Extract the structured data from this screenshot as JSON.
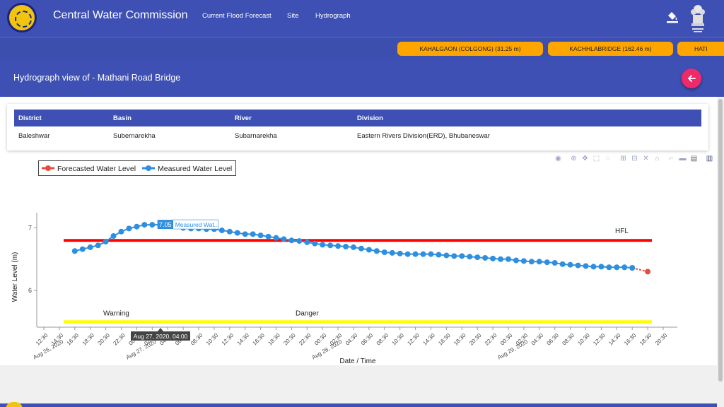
{
  "app": {
    "title": "Central Water Commission",
    "nav": [
      "Current Flood Forecast",
      "Site",
      "Hydrograph"
    ]
  },
  "ticker": [
    "KAHALGAON (COLGONG) (31.25 m)",
    "KACHHLABRIDGE (162.46 m)",
    "HATI"
  ],
  "page": {
    "title": "Hydrograph view of - Mathani Road Bridge"
  },
  "site_table": {
    "headers": [
      "District",
      "Basin",
      "River",
      "Division"
    ],
    "values": [
      "Baleshwar",
      "Subernarekha",
      "Subarnarekha",
      "Eastern Rivers Division(ERD), Bhubaneswar"
    ]
  },
  "toolbar_icons": [
    "camera-icon",
    "zoom-icon",
    "pan-icon",
    "box-select-icon",
    "lasso-select-icon",
    "zoom-in-icon",
    "zoom-out-icon",
    "autoscale-icon",
    "home-icon",
    "spike-lines-icon",
    "hover-closest-icon",
    "hover-compare-icon",
    "plotly-logo-icon"
  ],
  "colors": {
    "header": "#3e50b4",
    "ticker_pill": "#ffa500",
    "forecast": "#e74c3c",
    "measured": "#2e8fe0",
    "hfl_line": "#ff0000",
    "warning_line": "#ffff00",
    "fab": "#ee2a6b"
  },
  "chart_data": {
    "type": "line",
    "xlabel": "Date / Time",
    "ylabel": "Water Level (m)",
    "ylim": [
      5.42,
      7.2
    ],
    "yticks": [
      6,
      7
    ],
    "xticks": [
      "12:30",
      "14:30",
      "16:30",
      "18:30",
      "20:30",
      "22:30",
      "00:30",
      "02:30",
      "04:30",
      "06:30",
      "08:30",
      "10:30",
      "12:30",
      "14:30",
      "16:30",
      "18:30",
      "20:30",
      "22:30",
      "00:30",
      "02:30",
      "04:30",
      "06:30",
      "08:30",
      "10:30",
      "12:30",
      "14:30",
      "16:30",
      "18:30",
      "20:30",
      "22:30",
      "00:30",
      "02:30",
      "04:30",
      "06:30",
      "08:30",
      "10:30",
      "12:30",
      "14:30",
      "16:30",
      "18:30",
      "20:30"
    ],
    "xtick_dates": [
      {
        "tick": 0,
        "text": "Aug 26, 2020"
      },
      {
        "tick": 6,
        "text": "Aug 27, 2020"
      },
      {
        "tick": 18,
        "text": "Aug 28, 2020"
      },
      {
        "tick": 30,
        "text": "Aug 29, 2020"
      }
    ],
    "legend_position": "top-left",
    "series": [
      {
        "name": "Forecasted Water Level",
        "x": [
          38,
          39
        ],
        "values": [
          6.36,
          6.3
        ]
      },
      {
        "name": "Measured Water Level",
        "x": [
          2,
          2.5,
          3,
          3.5,
          4,
          4.5,
          5,
          5.5,
          6,
          6.5,
          7,
          7.5,
          8,
          8.5,
          9,
          9.5,
          10,
          10.5,
          11,
          11.5,
          12,
          12.5,
          13,
          13.5,
          14,
          14.5,
          15,
          15.5,
          16,
          16.5,
          17,
          17.5,
          18,
          18.5,
          19,
          19.5,
          20,
          20.5,
          21,
          21.5,
          22,
          22.5,
          23,
          23.5,
          24,
          24.5,
          25,
          25.5,
          26,
          26.5,
          27,
          27.5,
          28,
          28.5,
          29,
          29.5,
          30,
          30.5,
          31,
          31.5,
          32,
          32.5,
          33,
          33.5,
          34,
          34.5,
          35,
          35.5,
          36,
          36.5,
          37,
          37.5,
          38
        ],
        "values": [
          6.63,
          6.66,
          6.69,
          6.72,
          6.78,
          6.87,
          6.94,
          6.99,
          7.02,
          7.05,
          7.05,
          7.05,
          7.05,
          7.03,
          7.0,
          6.99,
          6.99,
          6.98,
          6.98,
          6.96,
          6.94,
          6.92,
          6.9,
          6.9,
          6.88,
          6.86,
          6.84,
          6.82,
          6.8,
          6.79,
          6.77,
          6.75,
          6.73,
          6.72,
          6.71,
          6.7,
          6.69,
          6.67,
          6.65,
          6.63,
          6.61,
          6.6,
          6.59,
          6.58,
          6.58,
          6.58,
          6.58,
          6.57,
          6.56,
          6.55,
          6.55,
          6.54,
          6.53,
          6.52,
          6.51,
          6.5,
          6.5,
          6.48,
          6.47,
          6.46,
          6.46,
          6.45,
          6.44,
          6.42,
          6.41,
          6.4,
          6.39,
          6.38,
          6.38,
          6.37,
          6.37,
          6.37,
          6.36
        ]
      }
    ],
    "reference_lines": [
      {
        "label": "HFL",
        "value": 6.8,
        "color": "#ff0000"
      },
      {
        "label": "Warning",
        "value": 5.5,
        "color": "#ffff00"
      },
      {
        "label": "Danger",
        "value": 5.5,
        "color": "#ffff00"
      }
    ],
    "hover": {
      "value_label": "7.05",
      "series_label": "Measured Wat...",
      "x_label": "Aug 27, 2020, 04:00",
      "x": 7.75,
      "y": 7.05
    }
  }
}
